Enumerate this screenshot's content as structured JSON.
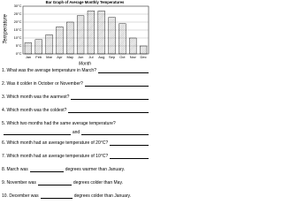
{
  "chart_data": {
    "type": "bar",
    "title": "Bar Graph of Average Monthly Temperatures",
    "x_label": "Month",
    "y_label": "Temperature",
    "categories": [
      "Jan",
      "Feb",
      "Mar",
      "Apr",
      "May",
      "Jun",
      "Jul",
      "Aug",
      "Sep",
      "Oct",
      "Nov",
      "Dec"
    ],
    "values": [
      7,
      9,
      12,
      17,
      20,
      24,
      27,
      27,
      23,
      19,
      10,
      5
    ],
    "color": "#d8d8d8",
    "ylim": [
      0,
      30
    ],
    "yticks": [
      {
        "value": 0,
        "label": "0°C"
      },
      {
        "value": 5,
        "label": "5°C"
      },
      {
        "value": 10,
        "label": "10°C"
      },
      {
        "value": 15,
        "label": "15°C"
      },
      {
        "value": 20,
        "label": "20°C"
      },
      {
        "value": 25,
        "label": "25°C"
      },
      {
        "value": 30,
        "label": "30°C"
      }
    ],
    "grid": true
  },
  "questions": [
    [
      "1. What was the average temperature in March?"
    ],
    [
      "2. Was it colder in October or November?"
    ],
    [
      "3. Which month was the warmest?"
    ],
    [
      "4. Which month was the coldest?"
    ],
    [
      "5. Which two months had the same average temperature?",
      "and"
    ],
    [
      "6. Which month had an average temperature of 20°C?"
    ],
    [
      "7. Which month had an average temperature of 10°C?"
    ],
    [
      "8. March was",
      "degrees warmer than January."
    ],
    [
      "9. November was",
      "degrees colder than May."
    ],
    [
      "10. December was",
      "degrees colder than January."
    ]
  ]
}
